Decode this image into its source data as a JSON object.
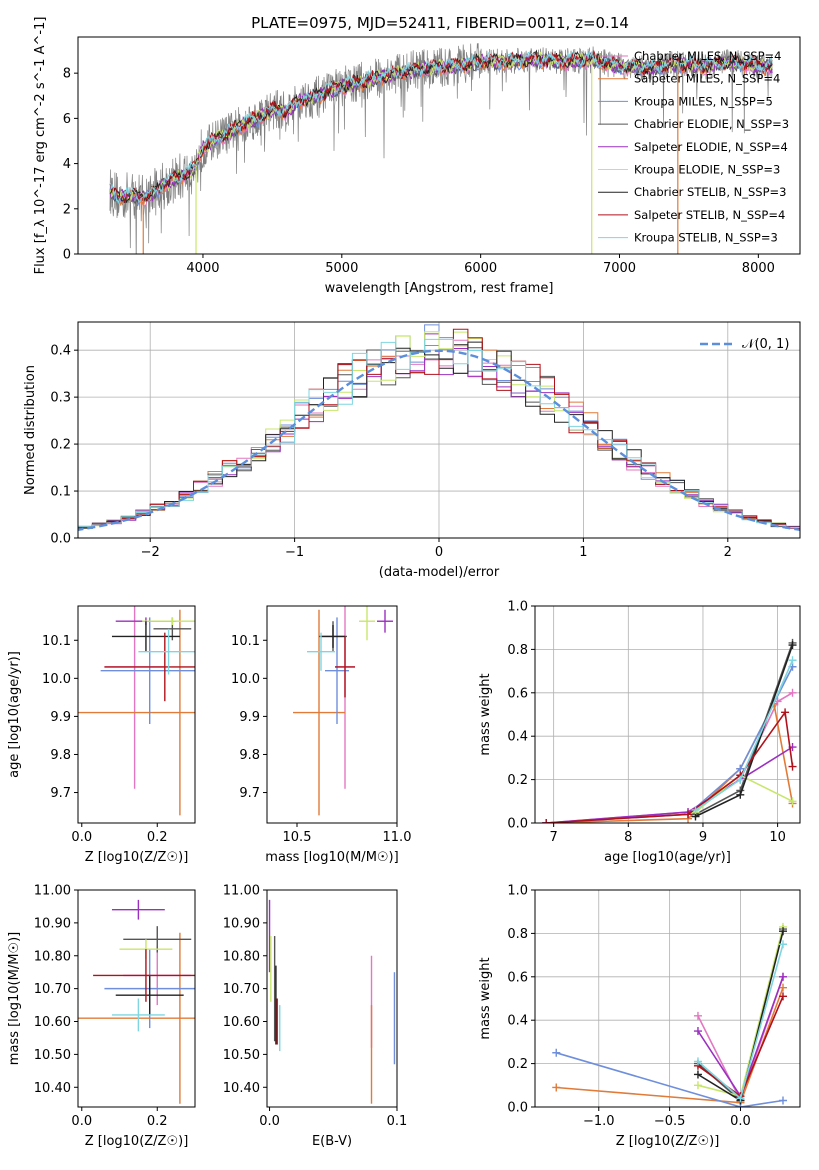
{
  "title": "PLATE=0975, MJD=52411, FIBERID=0011, z=0.14",
  "series_colors": [
    "#e377c2",
    "#e07b39",
    "#6f8fdc",
    "#555555",
    "#9b30c0",
    "#c8e66b",
    "#222222",
    "#b0121b",
    "#7fd6e0"
  ],
  "chart_data": [
    {
      "id": "spectrum",
      "type": "line",
      "xlabel": "wavelength [Angstrom, rest frame]",
      "ylabel": "Flux [f_λ 10^-17 erg cm^-2 s^-1 A^-1]",
      "xlim": [
        3100,
        8300
      ],
      "ylim": [
        0,
        9.6
      ],
      "xticks": [
        4000,
        5000,
        6000,
        7000,
        8000
      ],
      "yticks": [
        0,
        2,
        4,
        6,
        8
      ],
      "grid": false,
      "legend": "upper right",
      "legend_entries": [
        "Chabrier MILES, N_SSP=4",
        "Salpeter MILES, N_SSP=4",
        "Kroupa MILES, N_SSP=5",
        "Chabrier ELODIE, N_SSP=3",
        "Salpeter ELODIE, N_SSP=4",
        "Kroupa ELODIE, N_SSP=3",
        "Chabrier STELIB, N_SSP=3",
        "Salpeter STELIB, N_SSP=4",
        "Kroupa STELIB, N_SSP=3"
      ],
      "data_shape": {
        "x": [
          3330,
          3400,
          3500,
          3600,
          3700,
          3800,
          3900,
          3950,
          4000,
          4100,
          4200,
          4300,
          4400,
          4500,
          4600,
          4700,
          4800,
          4900,
          5000,
          5200,
          5400,
          5600,
          5800,
          6000,
          6200,
          6400,
          6600,
          6800,
          7000,
          7200,
          7400,
          7600,
          7800,
          8000,
          8100
        ],
        "y": [
          2.8,
          2.5,
          2.6,
          2.5,
          3.0,
          3.3,
          3.6,
          3.9,
          4.7,
          5.1,
          5.4,
          5.8,
          6.0,
          6.4,
          6.3,
          6.8,
          6.9,
          7.2,
          7.4,
          7.7,
          8.0,
          8.2,
          8.3,
          8.5,
          8.5,
          8.6,
          8.5,
          8.6,
          8.3,
          8.2,
          8.4,
          8.3,
          8.5,
          8.3,
          8.3
        ]
      }
    },
    {
      "id": "residuals",
      "type": "histogram",
      "xlabel": "(data-model)/error",
      "ylabel": "Normed distribution",
      "xlim": [
        -2.5,
        2.5
      ],
      "ylim": [
        0,
        0.46
      ],
      "xticks": [
        -2,
        -1,
        0,
        1,
        2
      ],
      "xticklabels": [
        "−2",
        "−1",
        "0",
        "1",
        "2"
      ],
      "yticks": [
        0.0,
        0.1,
        0.2,
        0.3,
        0.4
      ],
      "grid": true,
      "legend": "upper right",
      "legend_label": "𝒩(0, 1)",
      "gaussian": {
        "mean": 0,
        "sigma": 1,
        "color": "#5b8fdc"
      }
    },
    {
      "id": "age-vs-Z",
      "type": "errorbar",
      "xlabel": "Z [log10(Z/Z☉)]",
      "ylabel": "age [log10(age/yr)]",
      "xlim": [
        -0.01,
        0.3
      ],
      "ylim": [
        9.62,
        10.19
      ],
      "xticks": [
        0.0,
        0.2
      ],
      "yticks": [
        9.7,
        9.8,
        9.9,
        10.0,
        10.1
      ],
      "points": [
        {
          "x": 0.14,
          "y": 10.03,
          "xerr": 0.08,
          "yerr": 0.32
        },
        {
          "x": 0.26,
          "y": 9.91,
          "xerr": 0.29,
          "yerr": 0.27
        },
        {
          "x": 0.18,
          "y": 10.02,
          "xerr": 0.13,
          "yerr": 0.14
        },
        {
          "x": 0.24,
          "y": 10.13,
          "xerr": 0.05,
          "yerr": 0.03
        },
        {
          "x": 0.17,
          "y": 10.15,
          "xerr": 0.08,
          "yerr": 0.01
        },
        {
          "x": 0.24,
          "y": 10.15,
          "xerr": 0.08,
          "yerr": 0.01
        },
        {
          "x": 0.17,
          "y": 10.11,
          "xerr": 0.09,
          "yerr": 0.04
        },
        {
          "x": 0.22,
          "y": 10.03,
          "xerr": 0.16,
          "yerr": 0.09
        },
        {
          "x": 0.23,
          "y": 10.07,
          "xerr": 0.08,
          "yerr": 0.06
        }
      ]
    },
    {
      "id": "age-vs-mass",
      "type": "errorbar",
      "xlabel": "mass [log10(M/M☉)]",
      "xlim": [
        10.35,
        11.0
      ],
      "ylim": [
        9.62,
        10.19
      ],
      "xticks": [
        10.5,
        11.0
      ],
      "xticklabels": [
        "10.5",
        "11.0"
      ],
      "yticks": [
        9.7,
        9.8,
        9.9,
        10.0,
        10.1
      ],
      "points": [
        {
          "x": 10.74,
          "y": 10.03,
          "xerr": 0.05,
          "yerr": 0.32
        },
        {
          "x": 10.61,
          "y": 9.91,
          "xerr": 0.13,
          "yerr": 0.27
        },
        {
          "x": 10.7,
          "y": 10.02,
          "xerr": 0.06,
          "yerr": 0.14
        },
        {
          "x": 10.68,
          "y": 10.11,
          "xerr": 0.07,
          "yerr": 0.04
        },
        {
          "x": 10.94,
          "y": 10.15,
          "xerr": 0.04,
          "yerr": 0.03
        },
        {
          "x": 10.85,
          "y": 10.15,
          "xerr": 0.04,
          "yerr": 0.05
        },
        {
          "x": 10.68,
          "y": 10.11,
          "xerr": 0.06,
          "yerr": 0.03
        },
        {
          "x": 10.74,
          "y": 10.03,
          "xerr": 0.05,
          "yerr": 0.08
        },
        {
          "x": 10.62,
          "y": 10.07,
          "xerr": 0.07,
          "yerr": 0.05
        }
      ]
    },
    {
      "id": "weight-vs-age",
      "type": "line",
      "xlabel": "age [log10(age/yr)]",
      "ylabel": "mass weight",
      "xlim": [
        6.75,
        10.3
      ],
      "ylim": [
        0,
        1.0
      ],
      "xticks": [
        7,
        8,
        9,
        10
      ],
      "yticks": [
        0.0,
        0.2,
        0.4,
        0.6,
        0.8,
        1.0
      ],
      "grid": true,
      "series": [
        {
          "x": [
            6.9,
            8.8,
            9.5,
            10.0,
            10.2
          ],
          "y": [
            0.0,
            0.05,
            0.2,
            0.56,
            0.6
          ]
        },
        {
          "x": [
            6.9,
            8.8,
            9.5,
            9.95,
            10.2
          ],
          "y": [
            0.0,
            0.02,
            0.25,
            0.55,
            0.09
          ]
        },
        {
          "x": [
            6.9,
            8.8,
            9.5,
            10.2
          ],
          "y": [
            0.0,
            0.04,
            0.25,
            0.72
          ]
        },
        {
          "x": [
            8.9,
            9.5,
            10.2
          ],
          "y": [
            0.04,
            0.15,
            0.83
          ]
        },
        {
          "x": [
            6.9,
            8.8,
            9.5,
            10.2
          ],
          "y": [
            0.0,
            0.05,
            0.2,
            0.35
          ]
        },
        {
          "x": [
            8.9,
            9.5,
            10.2
          ],
          "y": [
            0.05,
            0.22,
            0.1
          ]
        },
        {
          "x": [
            8.9,
            9.5,
            10.2
          ],
          "y": [
            0.03,
            0.13,
            0.82
          ]
        },
        {
          "x": [
            6.9,
            8.8,
            9.5,
            10.1,
            10.2
          ],
          "y": [
            0.0,
            0.04,
            0.22,
            0.51,
            0.26
          ]
        },
        {
          "x": [
            8.9,
            9.5,
            10.2
          ],
          "y": [
            0.06,
            0.2,
            0.75
          ]
        }
      ]
    },
    {
      "id": "mass-vs-Z",
      "type": "errorbar",
      "xlabel": "Z [log10(Z/Z☉)]",
      "ylabel": "mass [log10(M/M☉)]",
      "xlim": [
        -0.01,
        0.3
      ],
      "ylim": [
        10.34,
        11.0
      ],
      "xticks": [
        0.0,
        0.2
      ],
      "yticks": [
        10.4,
        10.5,
        10.6,
        10.7,
        10.8,
        10.9,
        11.0
      ],
      "points": [
        {
          "x": 0.2,
          "y": 10.74,
          "xerr": 0.09,
          "yerr": 0.09
        },
        {
          "x": 0.26,
          "y": 10.61,
          "xerr": 0.29,
          "yerr": 0.26
        },
        {
          "x": 0.18,
          "y": 10.7,
          "xerr": 0.12,
          "yerr": 0.12
        },
        {
          "x": 0.2,
          "y": 10.85,
          "xerr": 0.09,
          "yerr": 0.04
        },
        {
          "x": 0.15,
          "y": 10.94,
          "xerr": 0.07,
          "yerr": 0.03
        },
        {
          "x": 0.17,
          "y": 10.82,
          "xerr": 0.07,
          "yerr": 0.03
        },
        {
          "x": 0.18,
          "y": 10.68,
          "xerr": 0.09,
          "yerr": 0.06
        },
        {
          "x": 0.17,
          "y": 10.74,
          "xerr": 0.14,
          "yerr": 0.08
        },
        {
          "x": 0.15,
          "y": 10.62,
          "xerr": 0.07,
          "yerr": 0.05
        }
      ]
    },
    {
      "id": "mass-vs-EBV",
      "type": "errorbar",
      "xlabel": "E(B-V)",
      "xlim": [
        -0.002,
        0.1
      ],
      "ylim": [
        10.34,
        11.0
      ],
      "xticks": [
        0.0,
        0.1
      ],
      "yticks": [
        10.4,
        10.5,
        10.6,
        10.7,
        10.8,
        10.9,
        11.0
      ],
      "points": [
        {
          "x": 0.08,
          "y": 10.66,
          "xerr": 0.0,
          "yerr": 0.14
        },
        {
          "x": 0.08,
          "y": 10.5,
          "xerr": 0.0,
          "yerr": 0.15
        },
        {
          "x": 0.098,
          "y": 10.61,
          "xerr": 0.0,
          "yerr": 0.14
        },
        {
          "x": 0.004,
          "y": 10.7,
          "xerr": 0.0,
          "yerr": 0.16
        },
        {
          "x": 0.0,
          "y": 10.86,
          "xerr": 0.0,
          "yerr": 0.11
        },
        {
          "x": 0.001,
          "y": 10.76,
          "xerr": 0.0,
          "yerr": 0.1
        },
        {
          "x": 0.005,
          "y": 10.65,
          "xerr": 0.0,
          "yerr": 0.12
        },
        {
          "x": 0.006,
          "y": 10.6,
          "xerr": 0.0,
          "yerr": 0.07
        },
        {
          "x": 0.008,
          "y": 10.58,
          "xerr": 0.0,
          "yerr": 0.07
        }
      ]
    },
    {
      "id": "weight-vs-Z",
      "type": "line",
      "xlabel": "Z [log10(Z/Z☉)]",
      "ylabel": "mass weight",
      "xlim": [
        -1.45,
        0.42
      ],
      "ylim": [
        0,
        1.0
      ],
      "xticks": [
        -1.0,
        -0.5,
        0.0
      ],
      "xticklabels": [
        "−1.0",
        "−0.5",
        "0.0"
      ],
      "yticks": [
        0.0,
        0.2,
        0.4,
        0.6,
        0.8,
        1.0
      ],
      "grid": true,
      "series": [
        {
          "x": [
            -0.3,
            0.0,
            0.3
          ],
          "y": [
            0.42,
            0.03,
            0.6
          ]
        },
        {
          "x": [
            -1.3,
            0.0,
            0.3
          ],
          "y": [
            0.09,
            0.02,
            0.55
          ]
        },
        {
          "x": [
            -1.3,
            0.0,
            0.3
          ],
          "y": [
            0.25,
            0.0,
            0.03
          ]
        },
        {
          "x": [
            -0.3,
            0.0,
            0.3
          ],
          "y": [
            0.2,
            0.03,
            0.82
          ]
        },
        {
          "x": [
            -0.3,
            0.0,
            0.3
          ],
          "y": [
            0.35,
            0.05,
            0.6
          ]
        },
        {
          "x": [
            -0.3,
            0.0,
            0.3
          ],
          "y": [
            0.1,
            0.05,
            0.83
          ]
        },
        {
          "x": [
            -0.3,
            0.0,
            0.3
          ],
          "y": [
            0.15,
            0.03,
            0.81
          ]
        },
        {
          "x": [
            -0.3,
            0.0,
            0.3
          ],
          "y": [
            0.19,
            0.05,
            0.51
          ]
        },
        {
          "x": [
            -0.3,
            0.0,
            0.3
          ],
          "y": [
            0.21,
            0.04,
            0.75
          ]
        }
      ]
    }
  ]
}
